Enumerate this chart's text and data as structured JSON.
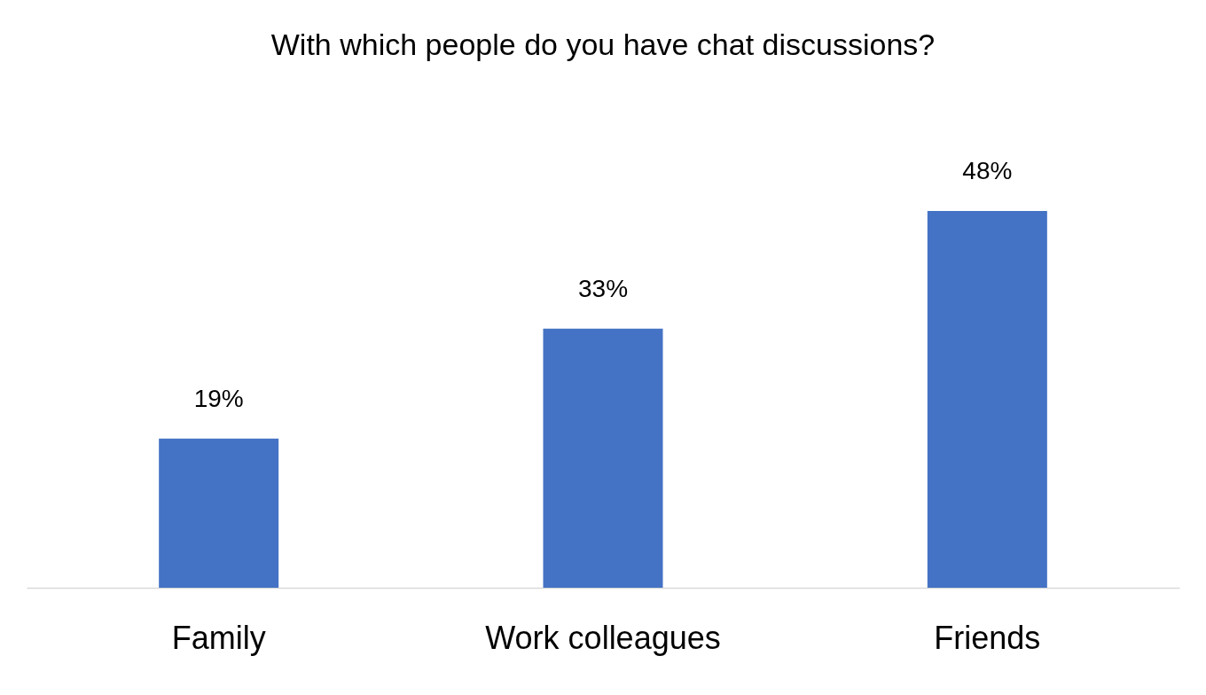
{
  "chart_data": {
    "type": "bar",
    "title": "With which people do you have chat discussions?",
    "categories": [
      "Family",
      "Work colleagues",
      "Friends"
    ],
    "values": [
      19,
      33,
      48
    ],
    "color": "#4472c4",
    "value_labels": [
      "19%",
      "33%",
      "48%"
    ]
  }
}
